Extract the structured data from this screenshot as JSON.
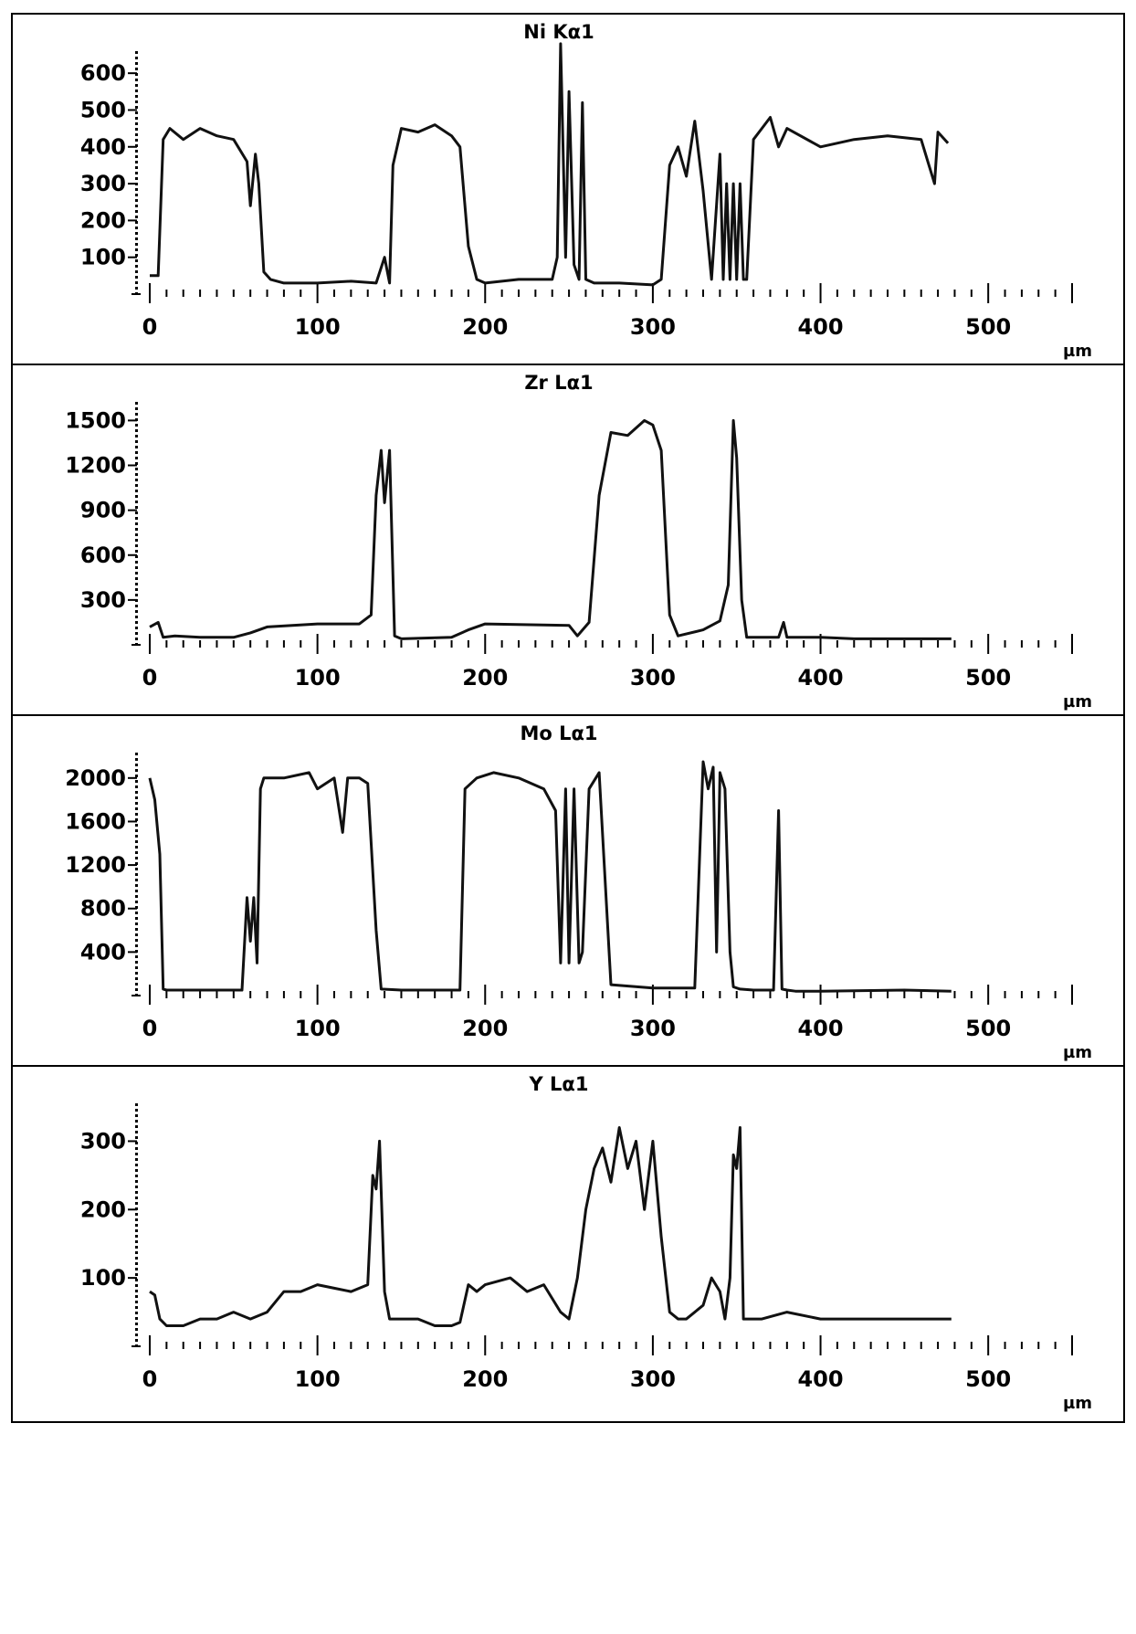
{
  "chart_data": [
    {
      "type": "line",
      "title": "Ni Kα1",
      "xlabel": "µm",
      "xlim": [
        0,
        550
      ],
      "ylim": [
        0,
        650
      ],
      "xticks": [
        0,
        100,
        200,
        300,
        400,
        500
      ],
      "yticks": [
        100,
        200,
        300,
        400,
        500,
        600
      ],
      "grid": false,
      "series": [
        {
          "x": [
            0,
            5,
            8,
            12,
            20,
            30,
            40,
            50,
            58,
            60,
            63,
            65,
            68,
            72,
            80,
            100,
            120,
            135,
            140,
            143,
            145,
            150,
            160,
            170,
            180,
            185,
            190,
            195,
            200,
            220,
            240,
            243,
            245,
            248,
            250,
            253,
            256,
            258,
            260,
            265,
            280,
            300,
            305,
            310,
            315,
            320,
            325,
            330,
            335,
            340,
            342,
            344,
            346,
            348,
            350,
            352,
            354,
            356,
            360,
            365,
            370,
            375,
            380,
            400,
            420,
            440,
            460,
            468,
            470,
            476
          ],
          "y": [
            50,
            50,
            420,
            450,
            420,
            450,
            430,
            420,
            360,
            240,
            380,
            300,
            60,
            40,
            30,
            30,
            35,
            30,
            100,
            30,
            350,
            450,
            440,
            460,
            430,
            400,
            130,
            40,
            30,
            40,
            40,
            100,
            680,
            100,
            550,
            80,
            40,
            520,
            40,
            30,
            30,
            25,
            40,
            350,
            400,
            320,
            470,
            280,
            40,
            380,
            40,
            300,
            40,
            300,
            40,
            300,
            40,
            40,
            420,
            450,
            480,
            400,
            450,
            400,
            420,
            430,
            420,
            300,
            440,
            410
          ]
        }
      ]
    },
    {
      "type": "line",
      "title": "Zr Lα1",
      "xlabel": "µm",
      "xlim": [
        0,
        550
      ],
      "ylim": [
        0,
        1600
      ],
      "xticks": [
        0,
        100,
        200,
        300,
        400,
        500
      ],
      "yticks": [
        300,
        600,
        900,
        1200,
        1500
      ],
      "grid": false,
      "series": [
        {
          "x": [
            0,
            5,
            8,
            15,
            30,
            50,
            60,
            70,
            100,
            125,
            132,
            135,
            138,
            140,
            143,
            146,
            150,
            180,
            190,
            200,
            250,
            255,
            262,
            268,
            275,
            285,
            295,
            300,
            305,
            310,
            315,
            330,
            340,
            345,
            348,
            350,
            353,
            356,
            360,
            375,
            378,
            380,
            400,
            420,
            450,
            478
          ],
          "y": [
            120,
            150,
            50,
            60,
            50,
            50,
            80,
            120,
            140,
            140,
            200,
            1000,
            1300,
            950,
            1300,
            60,
            40,
            50,
            100,
            140,
            130,
            60,
            150,
            1000,
            1420,
            1400,
            1500,
            1470,
            1300,
            200,
            60,
            100,
            160,
            400,
            1500,
            1250,
            300,
            50,
            50,
            50,
            150,
            50,
            50,
            40,
            40,
            40
          ]
        }
      ]
    },
    {
      "type": "line",
      "title": "Mo Lα1",
      "xlabel": "µm",
      "xlim": [
        0,
        550
      ],
      "ylim": [
        0,
        2200
      ],
      "xticks": [
        0,
        100,
        200,
        300,
        400,
        500
      ],
      "yticks": [
        400,
        800,
        1200,
        1600,
        2000
      ],
      "grid": false,
      "series": [
        {
          "x": [
            0,
            3,
            6,
            8,
            10,
            20,
            40,
            55,
            58,
            60,
            62,
            64,
            66,
            68,
            70,
            80,
            95,
            100,
            110,
            115,
            118,
            125,
            130,
            135,
            138,
            150,
            185,
            188,
            195,
            205,
            220,
            235,
            242,
            245,
            248,
            250,
            253,
            256,
            258,
            262,
            268,
            275,
            300,
            325,
            330,
            333,
            336,
            338,
            340,
            343,
            346,
            348,
            352,
            360,
            372,
            375,
            377,
            380,
            385,
            400,
            450,
            478
          ],
          "y": [
            2000,
            1800,
            1300,
            60,
            50,
            50,
            50,
            50,
            900,
            500,
            900,
            300,
            1900,
            2000,
            2000,
            2000,
            2050,
            1900,
            2000,
            1500,
            2000,
            2000,
            1950,
            600,
            60,
            50,
            50,
            1900,
            2000,
            2050,
            2000,
            1900,
            1700,
            300,
            1900,
            300,
            1900,
            300,
            400,
            1900,
            2050,
            100,
            70,
            70,
            2150,
            1900,
            2100,
            400,
            2050,
            1900,
            400,
            80,
            60,
            50,
            50,
            1700,
            60,
            50,
            40,
            40,
            50,
            40
          ]
        }
      ]
    },
    {
      "type": "line",
      "title": "Y Lα1",
      "xlabel": "µm",
      "xlim": [
        0,
        550
      ],
      "ylim": [
        0,
        350
      ],
      "xticks": [
        0,
        100,
        200,
        300,
        400,
        500
      ],
      "yticks": [
        100,
        200,
        300
      ],
      "grid": false,
      "series": [
        {
          "x": [
            0,
            3,
            6,
            10,
            20,
            30,
            40,
            50,
            60,
            70,
            80,
            90,
            100,
            110,
            120,
            130,
            133,
            135,
            137,
            140,
            143,
            150,
            160,
            170,
            180,
            185,
            190,
            195,
            200,
            215,
            225,
            235,
            240,
            245,
            250,
            255,
            260,
            265,
            270,
            275,
            280,
            285,
            290,
            295,
            300,
            305,
            310,
            315,
            320,
            330,
            335,
            340,
            343,
            346,
            348,
            350,
            352,
            354,
            358,
            365,
            380,
            400,
            420,
            440,
            460,
            478
          ],
          "y": [
            80,
            75,
            40,
            30,
            30,
            40,
            40,
            50,
            40,
            50,
            80,
            80,
            90,
            85,
            80,
            90,
            250,
            230,
            300,
            80,
            40,
            40,
            40,
            30,
            30,
            35,
            90,
            80,
            90,
            100,
            80,
            90,
            70,
            50,
            40,
            100,
            200,
            260,
            290,
            240,
            320,
            260,
            300,
            200,
            300,
            160,
            50,
            40,
            40,
            60,
            100,
            80,
            40,
            100,
            280,
            260,
            320,
            40,
            40,
            40,
            50,
            40,
            40,
            40,
            40,
            40
          ]
        }
      ]
    }
  ]
}
